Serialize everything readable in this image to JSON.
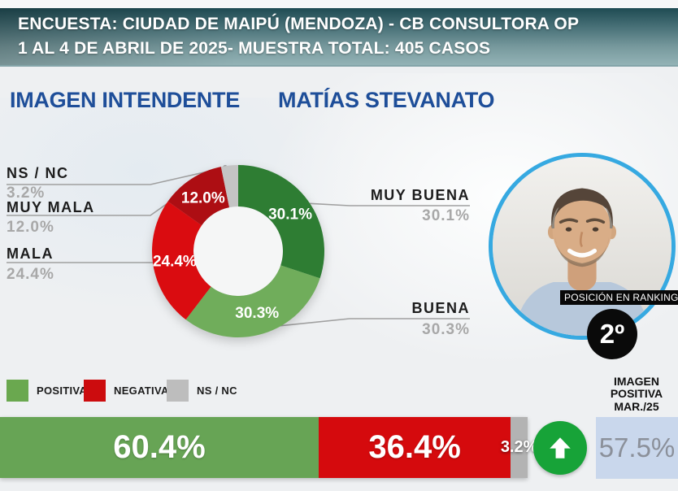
{
  "header": {
    "line1": "ENCUESTA: CIUDAD DE MAIPÚ (MENDOZA) - CB CONSULTORA OP",
    "line2": "1 AL 4 DE ABRIL DE 2025- MUESTRA TOTAL: 405 CASOS"
  },
  "page_title": {
    "left": "IMAGEN INTENDENTE",
    "right": "MATÍAS STEVANATO"
  },
  "chart_data": [
    {
      "type": "pie",
      "title": "IMAGEN INTENDENTE MATÍAS STEVANATO",
      "categories": [
        "MUY BUENA",
        "BUENA",
        "MALA",
        "MUY MALA",
        "NS / NC"
      ],
      "values": [
        30.1,
        30.3,
        24.4,
        12.0,
        3.2
      ],
      "labels_inside": [
        "30.1%",
        "30.3%",
        "24.4%",
        "12.0%",
        ""
      ],
      "colors": [
        "#2e7d33",
        "#70ad5b",
        "#da0c10",
        "#ad0e13",
        "#c4c4c4"
      ],
      "donut_hole_ratio": 0.52,
      "start_angle_deg": 0,
      "direction": "clockwise",
      "legend_position": "bottom-left"
    },
    {
      "type": "bar",
      "stacked": true,
      "categories": [
        "POSITIVA",
        "NEGATIVA",
        "NS / NC"
      ],
      "values": [
        60.4,
        36.4,
        3.2
      ],
      "labels": [
        "60.4%",
        "36.4%",
        "3.2%"
      ],
      "colors": [
        "#67a455",
        "#d50a0d",
        "#b3b3b3"
      ],
      "xlim": [
        0,
        100
      ]
    }
  ],
  "callouts": {
    "left": [
      {
        "label": "NS / NC",
        "value": "3.2%"
      },
      {
        "label": "MUY MALA",
        "value": "12.0%"
      },
      {
        "label": "MALA",
        "value": "24.4%"
      }
    ],
    "right": [
      {
        "label": "MUY BUENA",
        "value": "30.1%"
      },
      {
        "label": "BUENA",
        "value": "30.3%"
      }
    ]
  },
  "legend": [
    {
      "label": "POSITIVA",
      "color": "#6aa84f"
    },
    {
      "label": "NEGATIVA",
      "color": "#cc0c0e"
    },
    {
      "label": "NS / NC",
      "color": "#bdbdbd"
    }
  ],
  "ranking": {
    "band": "POSICIÓN EN RANKING",
    "position": "2º"
  },
  "reference": {
    "lines": [
      "IMAGEN",
      "POSITIVA",
      "MAR./25"
    ],
    "value": "57.5%",
    "box_color": "#c9d7ec"
  },
  "trend_arrow": {
    "icon": "up-arrow",
    "color": "#17a338"
  }
}
